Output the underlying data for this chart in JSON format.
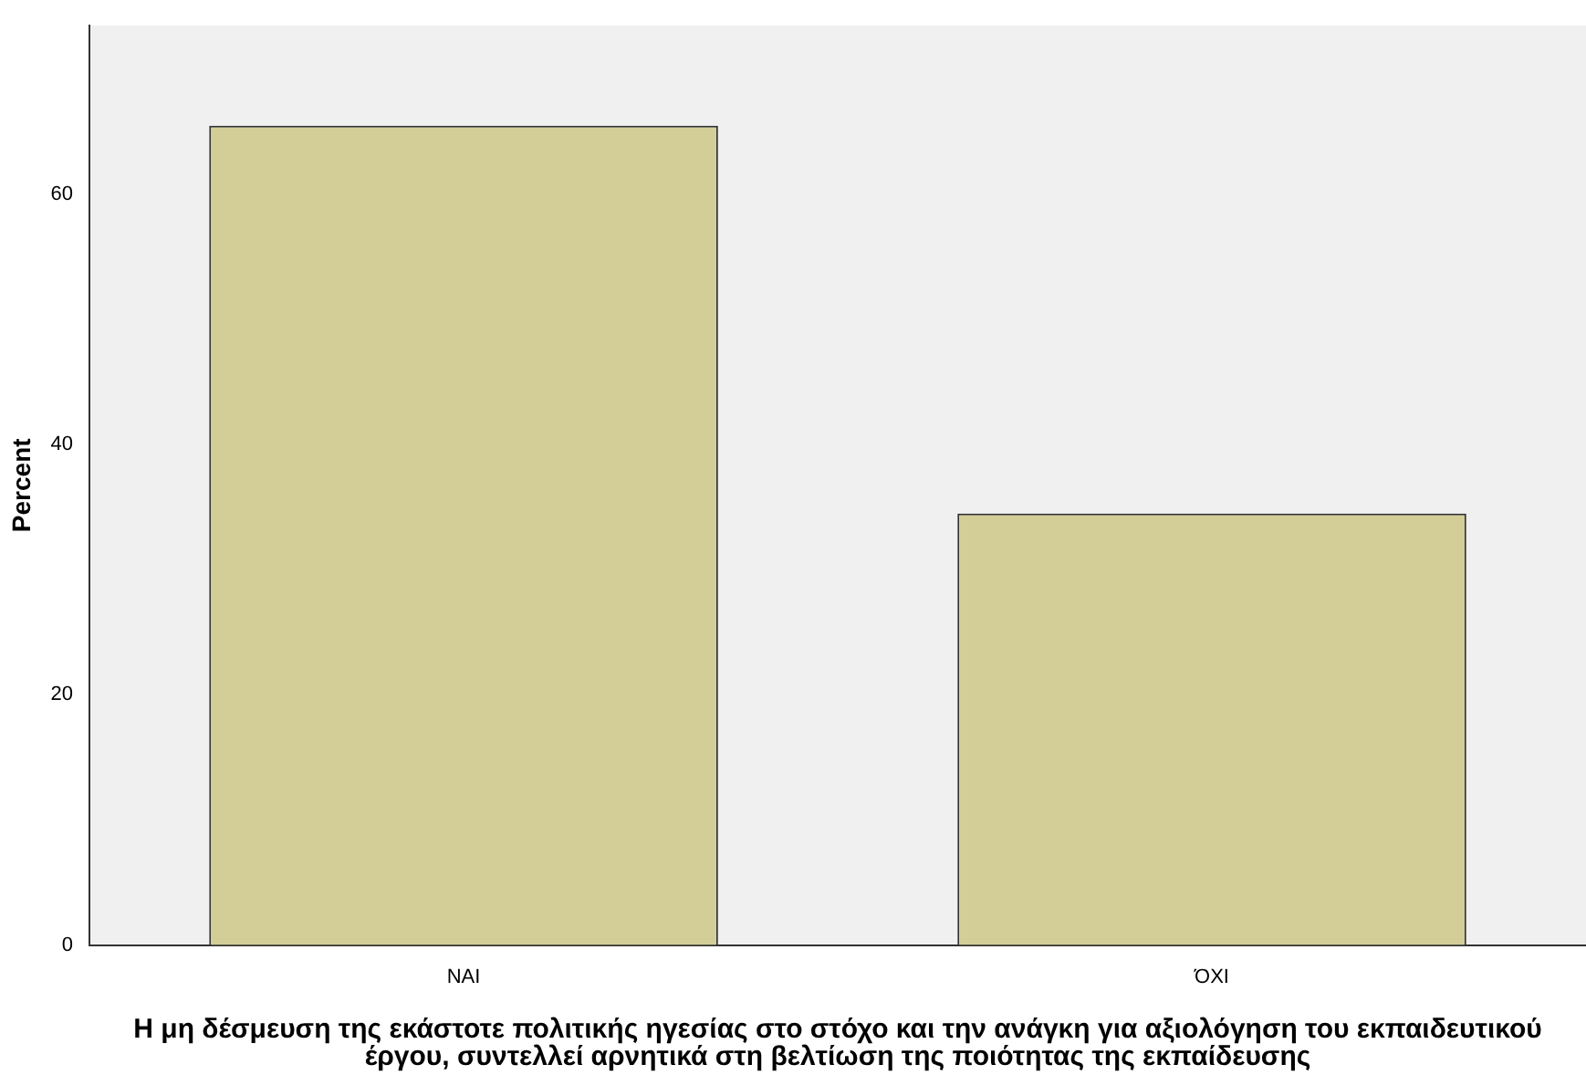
{
  "chart_data": {
    "type": "bar",
    "xlabel": "Η μη δέσμευση της εκάστοτε πολιτικής ηγεσίας στο στόχο και την ανάγκη για αξιολόγηση του εκπαιδευτικού έργου, συντελλεί αρνητικά στη βελτίωση της ποιότητας της εκπαίδευσης",
    "ylabel": "Percent",
    "categories": [
      "ΝΑΙ",
      "ΌΧΙ"
    ],
    "values": [
      65.5,
      34.5
    ],
    "color": "#d3ce97",
    "ylim": [
      0,
      73.5
    ],
    "yticks": [
      0,
      20,
      40,
      60
    ],
    "grid": false,
    "legend": false
  }
}
